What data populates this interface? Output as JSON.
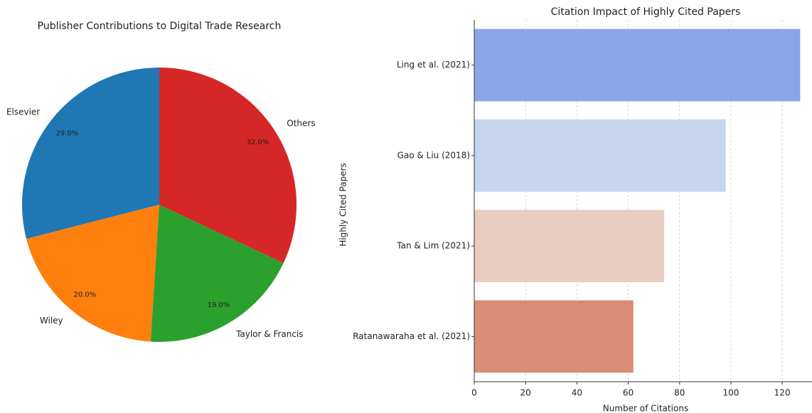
{
  "chart_data": [
    {
      "type": "pie",
      "title": "Publisher Contributions to Digital Trade Research",
      "categories": [
        "Elsevier",
        "Wiley",
        "Taylor & Francis",
        "Others"
      ],
      "values": [
        29,
        20,
        19,
        32
      ],
      "value_labels": [
        "29.0%",
        "20.0%",
        "19.0%",
        "32.0%"
      ],
      "colors": [
        "#1f77b4",
        "#ff7f0e",
        "#2ca02c",
        "#d62728"
      ]
    },
    {
      "type": "barh",
      "title": "Citation Impact of Highly Cited Papers",
      "x_label": "Number of Citations",
      "y_label": "Highly Cited Papers",
      "categories": [
        "Ling et al. (2021)",
        "Gao & Liu (2018)",
        "Tan & Lim (2021)",
        "Ratanawaraha et al. (2021)"
      ],
      "values": [
        127,
        98,
        74,
        62
      ],
      "colors": [
        "#8aa5e8",
        "#c8d5ef",
        "#e8cdc0",
        "#da8c76"
      ],
      "xlim": [
        0,
        131.6
      ],
      "xticks": [
        0,
        20,
        40,
        60,
        80,
        100,
        120
      ],
      "grid": true
    }
  ]
}
